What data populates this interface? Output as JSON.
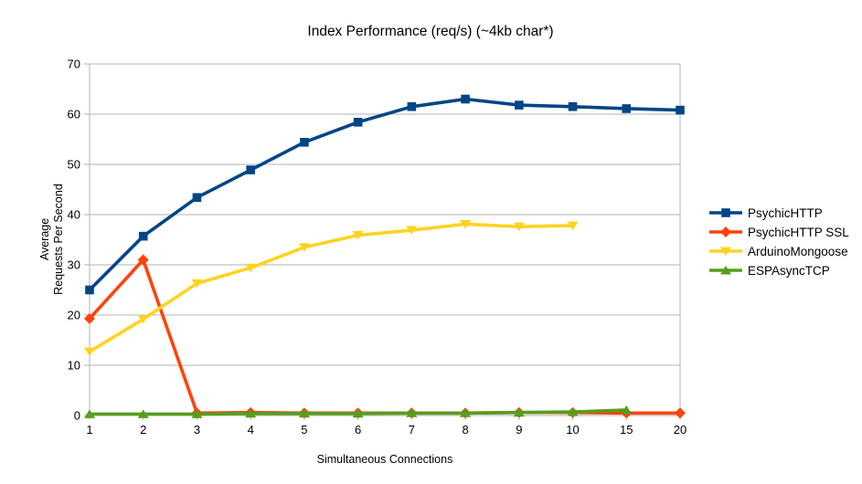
{
  "chart_data": {
    "type": "line",
    "title": "Index Performance (req/s) (~4kb char*)",
    "xlabel": "Simultaneous Connections",
    "ylabel_lines": [
      "Average",
      "Requests Per Second"
    ],
    "categories": [
      "1",
      "2",
      "3",
      "4",
      "5",
      "6",
      "7",
      "8",
      "9",
      "10",
      "15",
      "20"
    ],
    "ylim": [
      0,
      70
    ],
    "ytick_step": 10,
    "grid": "horizontal",
    "legend_position": "right",
    "axis_color": "#b3b3b3",
    "text_color": "#000000",
    "background_color": "#ffffff",
    "series": [
      {
        "name": "PsychicHTTP",
        "color": "#004586",
        "marker": "square",
        "values": [
          25.0,
          35.7,
          43.4,
          48.9,
          54.4,
          58.4,
          61.5,
          63.0,
          61.8,
          61.5,
          61.1,
          60.8
        ]
      },
      {
        "name": "PsychicHTTP SSL",
        "color": "#ff420e",
        "marker": "diamond",
        "values": [
          19.3,
          31.0,
          0.5,
          0.6,
          0.5,
          0.5,
          0.5,
          0.5,
          0.6,
          0.6,
          0.5,
          0.5
        ]
      },
      {
        "name": "ArduinoMongoose",
        "color": "#ffd320",
        "marker": "triangle-down",
        "values": [
          12.7,
          19.2,
          26.3,
          29.4,
          33.5,
          35.9,
          36.9,
          38.1,
          37.6,
          37.8
        ]
      },
      {
        "name": "ESPAsyncTCP",
        "color": "#579d1c",
        "marker": "triangle-up",
        "values": [
          0.3,
          0.3,
          0.3,
          0.4,
          0.4,
          0.4,
          0.5,
          0.5,
          0.6,
          0.7,
          1.1
        ]
      }
    ]
  }
}
